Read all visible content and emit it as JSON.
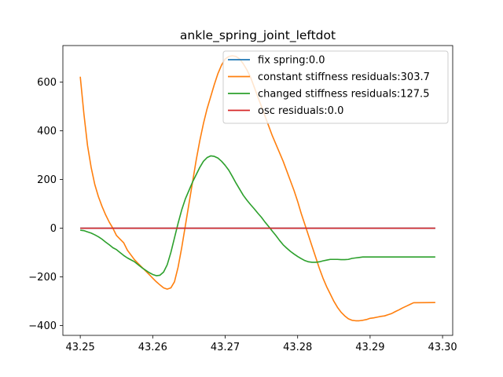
{
  "chart_data": {
    "type": "line",
    "title": "ankle_spring_joint_leftdot",
    "xlabel": "",
    "ylabel": "",
    "xlim": [
      43.2476,
      43.3014
    ],
    "ylim": [
      -440,
      750
    ],
    "xticks": [
      43.25,
      43.26,
      43.27,
      43.28,
      43.29,
      43.3
    ],
    "xtick_labels": [
      "43.25",
      "43.26",
      "43.27",
      "43.28",
      "43.29",
      "43.30"
    ],
    "yticks": [
      -400,
      -200,
      0,
      200,
      400,
      600
    ],
    "ytick_labels": [
      "−400",
      "−200",
      "0",
      "200",
      "400",
      "600"
    ],
    "grid": false,
    "legend_position": "top-right",
    "series": [
      {
        "name": "fix spring:0.0",
        "color": "#1f77b4",
        "points": [
          [
            43.25,
            0
          ],
          [
            43.299,
            0
          ]
        ]
      },
      {
        "name": "constant stiffness residuals:303.7",
        "color": "#ff7f0e",
        "points": [
          [
            43.25,
            622
          ],
          [
            43.2505,
            470
          ],
          [
            43.251,
            340
          ],
          [
            43.2515,
            250
          ],
          [
            43.252,
            180
          ],
          [
            43.2525,
            130
          ],
          [
            43.253,
            90
          ],
          [
            43.2535,
            55
          ],
          [
            43.254,
            25
          ],
          [
            43.2545,
            0
          ],
          [
            43.255,
            -30
          ],
          [
            43.2555,
            -45
          ],
          [
            43.256,
            -60
          ],
          [
            43.2565,
            -90
          ],
          [
            43.257,
            -110
          ],
          [
            43.2575,
            -130
          ],
          [
            43.258,
            -145
          ],
          [
            43.2585,
            -160
          ],
          [
            43.259,
            -175
          ],
          [
            43.2595,
            -190
          ],
          [
            43.26,
            -205
          ],
          [
            43.2605,
            -220
          ],
          [
            43.261,
            -233
          ],
          [
            43.2615,
            -245
          ],
          [
            43.262,
            -250
          ],
          [
            43.2625,
            -245
          ],
          [
            43.263,
            -220
          ],
          [
            43.2635,
            -160
          ],
          [
            43.264,
            -80
          ],
          [
            43.2645,
            10
          ],
          [
            43.265,
            100
          ],
          [
            43.2655,
            190
          ],
          [
            43.266,
            280
          ],
          [
            43.2665,
            360
          ],
          [
            43.267,
            430
          ],
          [
            43.2675,
            490
          ],
          [
            43.268,
            540
          ],
          [
            43.2685,
            590
          ],
          [
            43.269,
            635
          ],
          [
            43.2695,
            670
          ],
          [
            43.27,
            695
          ],
          [
            43.2705,
            705
          ],
          [
            43.271,
            708
          ],
          [
            43.2715,
            705
          ],
          [
            43.272,
            695
          ],
          [
            43.2725,
            675
          ],
          [
            43.273,
            650
          ],
          [
            43.2735,
            620
          ],
          [
            43.274,
            580
          ],
          [
            43.2745,
            540
          ],
          [
            43.275,
            500
          ],
          [
            43.2755,
            460
          ],
          [
            43.276,
            420
          ],
          [
            43.2765,
            380
          ],
          [
            43.277,
            345
          ],
          [
            43.2775,
            310
          ],
          [
            43.278,
            275
          ],
          [
            43.2785,
            235
          ],
          [
            43.279,
            195
          ],
          [
            43.2795,
            155
          ],
          [
            43.28,
            110
          ],
          [
            43.2805,
            60
          ],
          [
            43.281,
            15
          ],
          [
            43.2815,
            -30
          ],
          [
            43.282,
            -75
          ],
          [
            43.2825,
            -120
          ],
          [
            43.283,
            -165
          ],
          [
            43.2835,
            -205
          ],
          [
            43.284,
            -240
          ],
          [
            43.2845,
            -270
          ],
          [
            43.285,
            -300
          ],
          [
            43.2855,
            -325
          ],
          [
            43.286,
            -345
          ],
          [
            43.2865,
            -360
          ],
          [
            43.287,
            -372
          ],
          [
            43.2875,
            -378
          ],
          [
            43.288,
            -380
          ],
          [
            43.2885,
            -380
          ],
          [
            43.289,
            -378
          ],
          [
            43.2895,
            -375
          ],
          [
            43.29,
            -370
          ],
          [
            43.2905,
            -368
          ],
          [
            43.291,
            -365
          ],
          [
            43.2915,
            -362
          ],
          [
            43.292,
            -360
          ],
          [
            43.2925,
            -355
          ],
          [
            43.293,
            -350
          ],
          [
            43.2935,
            -342
          ],
          [
            43.294,
            -335
          ],
          [
            43.2945,
            -327
          ],
          [
            43.295,
            -320
          ],
          [
            43.2955,
            -313
          ],
          [
            43.296,
            -306
          ],
          [
            43.299,
            -305
          ]
        ]
      },
      {
        "name": "changed stiffness residuals:127.5",
        "color": "#2ca02c",
        "points": [
          [
            43.25,
            -8
          ],
          [
            43.2505,
            -10
          ],
          [
            43.251,
            -15
          ],
          [
            43.2515,
            -20
          ],
          [
            43.252,
            -27
          ],
          [
            43.2525,
            -35
          ],
          [
            43.253,
            -45
          ],
          [
            43.2535,
            -57
          ],
          [
            43.254,
            -68
          ],
          [
            43.2545,
            -80
          ],
          [
            43.255,
            -88
          ],
          [
            43.2555,
            -100
          ],
          [
            43.256,
            -112
          ],
          [
            43.2565,
            -122
          ],
          [
            43.257,
            -130
          ],
          [
            43.2575,
            -138
          ],
          [
            43.258,
            -150
          ],
          [
            43.2585,
            -162
          ],
          [
            43.259,
            -172
          ],
          [
            43.2595,
            -182
          ],
          [
            43.26,
            -190
          ],
          [
            43.2605,
            -195
          ],
          [
            43.261,
            -193
          ],
          [
            43.2615,
            -180
          ],
          [
            43.262,
            -150
          ],
          [
            43.2625,
            -100
          ],
          [
            43.263,
            -40
          ],
          [
            43.2635,
            20
          ],
          [
            43.264,
            75
          ],
          [
            43.2645,
            120
          ],
          [
            43.265,
            155
          ],
          [
            43.2655,
            190
          ],
          [
            43.266,
            220
          ],
          [
            43.2665,
            250
          ],
          [
            43.267,
            275
          ],
          [
            43.2675,
            290
          ],
          [
            43.268,
            297
          ],
          [
            43.2685,
            295
          ],
          [
            43.269,
            288
          ],
          [
            43.2695,
            275
          ],
          [
            43.27,
            258
          ],
          [
            43.2705,
            238
          ],
          [
            43.271,
            212
          ],
          [
            43.2715,
            185
          ],
          [
            43.272,
            160
          ],
          [
            43.2725,
            135
          ],
          [
            43.273,
            115
          ],
          [
            43.2735,
            97
          ],
          [
            43.274,
            80
          ],
          [
            43.2745,
            62
          ],
          [
            43.275,
            45
          ],
          [
            43.2755,
            25
          ],
          [
            43.276,
            7
          ],
          [
            43.2765,
            -12
          ],
          [
            43.277,
            -30
          ],
          [
            43.2775,
            -50
          ],
          [
            43.278,
            -68
          ],
          [
            43.2785,
            -82
          ],
          [
            43.279,
            -95
          ],
          [
            43.2795,
            -106
          ],
          [
            43.28,
            -116
          ],
          [
            43.2805,
            -125
          ],
          [
            43.281,
            -133
          ],
          [
            43.2815,
            -138
          ],
          [
            43.282,
            -140
          ],
          [
            43.2825,
            -140
          ],
          [
            43.283,
            -138
          ],
          [
            43.2835,
            -134
          ],
          [
            43.284,
            -131
          ],
          [
            43.2845,
            -128
          ],
          [
            43.285,
            -128
          ],
          [
            43.2855,
            -128
          ],
          [
            43.286,
            -129
          ],
          [
            43.2865,
            -129
          ],
          [
            43.287,
            -128
          ],
          [
            43.2875,
            -124
          ],
          [
            43.288,
            -122
          ],
          [
            43.2885,
            -120
          ],
          [
            43.289,
            -118
          ],
          [
            43.299,
            -118
          ]
        ]
      },
      {
        "name": "osc residuals:0.0",
        "color": "#d62728",
        "points": [
          [
            43.25,
            0
          ],
          [
            43.299,
            0
          ]
        ]
      }
    ]
  }
}
